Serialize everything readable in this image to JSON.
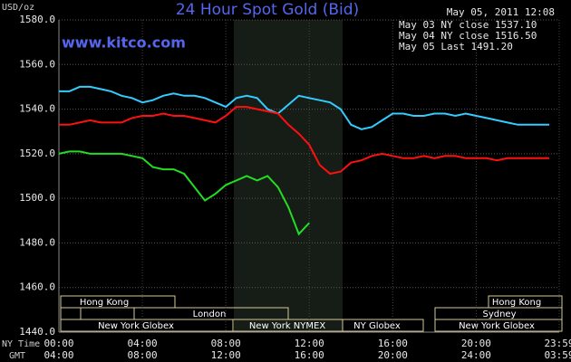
{
  "chart_data": {
    "type": "line",
    "title": "24 Hour Spot Gold (Bid)",
    "website": "www.kitco.com",
    "timestamp": "May 05, 2011 12:08",
    "y_label": "USD/oz",
    "x_label": "NY Time",
    "x2_label": "GMT",
    "xlim": [
      0,
      23.98
    ],
    "ylim": [
      1440,
      1580
    ],
    "xticks": [
      {
        "value": 0,
        "label": "00:00"
      },
      {
        "value": 4,
        "label": "04:00"
      },
      {
        "value": 8,
        "label": "08:00"
      },
      {
        "value": 12,
        "label": "12:00"
      },
      {
        "value": 16,
        "label": "16:00"
      },
      {
        "value": 20,
        "label": "20:00"
      },
      {
        "value": 23.98,
        "label": "23:59"
      }
    ],
    "gmt_labels": [
      "04:00",
      "08:00",
      "12:00",
      "16:00",
      "20:00",
      "24:00",
      "03:59"
    ],
    "yticks": [
      {
        "value": 1440,
        "label": "1440.0"
      },
      {
        "value": 1460,
        "label": "1460.0"
      },
      {
        "value": 1480,
        "label": "1480.0"
      },
      {
        "value": 1500,
        "label": "1500.0"
      },
      {
        "value": 1520,
        "label": "1520.0"
      },
      {
        "value": 1540,
        "label": "1540.0"
      },
      {
        "value": 1560,
        "label": "1560.0"
      },
      {
        "value": 1580,
        "label": "1580.0"
      }
    ],
    "grid": true,
    "x": [
      0,
      0.5,
      1,
      1.5,
      2,
      2.5,
      3,
      3.5,
      4,
      4.5,
      5,
      5.5,
      6,
      6.5,
      7,
      7.5,
      8,
      8.5,
      9,
      9.5,
      10,
      10.5,
      11,
      11.5,
      12,
      12.5,
      13,
      13.5,
      14,
      14.5,
      15,
      15.5,
      16,
      16.5,
      17,
      17.5,
      18,
      18.5,
      19,
      19.5,
      20,
      20.5,
      21,
      21.5,
      22,
      22.5,
      23,
      23.5
    ],
    "series": [
      {
        "name": "May 03 NY close 1537.10",
        "color": "#33ccff",
        "values": [
          1548,
          1548,
          1550,
          1550,
          1549,
          1548,
          1546,
          1545,
          1543,
          1544,
          1546,
          1547,
          1546,
          1546,
          1545,
          1543,
          1541,
          1545,
          1546,
          1545,
          1540,
          1538,
          1542,
          1546,
          1545,
          1544,
          1543,
          1540,
          1533,
          1531,
          1532,
          1535,
          1538,
          1538,
          1537,
          1537,
          1538,
          1538,
          1537,
          1538,
          1537,
          1536,
          1535,
          1534,
          1533,
          1533,
          1533,
          1533
        ]
      },
      {
        "name": "May 04 NY close 1516.50",
        "color": "#ff1010",
        "values": [
          1533,
          1533,
          1534,
          1535,
          1534,
          1534,
          1534,
          1536,
          1537,
          1537,
          1538,
          1537,
          1537,
          1536,
          1535,
          1534,
          1537,
          1541,
          1541,
          1540,
          1539,
          1538,
          1533,
          1529,
          1524,
          1515,
          1511,
          1512,
          1516,
          1517,
          1519,
          1520,
          1519,
          1518,
          1518,
          1519,
          1518,
          1519,
          1519,
          1518,
          1518,
          1518,
          1517,
          1518,
          1518,
          1518,
          1518,
          1518
        ]
      },
      {
        "name": "May 05 Last 1491.20",
        "color": "#22dd22",
        "values": [
          1520,
          1521,
          1521,
          1520,
          1520,
          1520,
          1520,
          1519,
          1518,
          1514,
          1513,
          1513,
          1511,
          1505,
          1499,
          1502,
          1506,
          1508,
          1510,
          1508,
          1510,
          1505,
          1496,
          1484,
          1489,
          null,
          null,
          null,
          null,
          null,
          null,
          null,
          null,
          null,
          null,
          null,
          null,
          null,
          null,
          null,
          null,
          null,
          null,
          null,
          null,
          null,
          null,
          null
        ]
      }
    ],
    "sessions": {
      "hong_kong_1": "Hong Kong",
      "london": "London",
      "hong_kong_2": "Hong Kong",
      "sydney": "Sydney",
      "ny_globex_1": "New York Globex",
      "ny_nymex": "New York NYMEX",
      "ny_globex_2": "NY Globex",
      "ny_globex_3": "New York Globex"
    }
  }
}
